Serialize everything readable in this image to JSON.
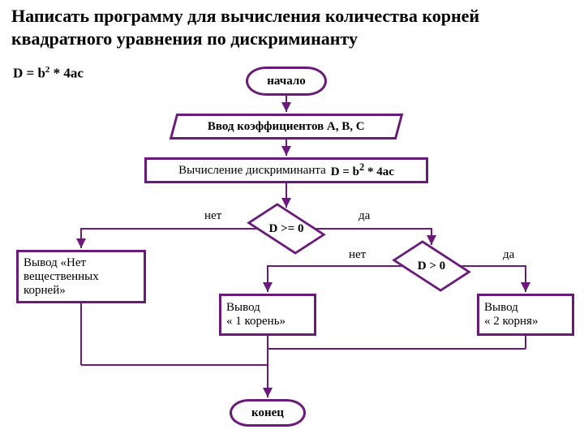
{
  "title": "Написать программу для вычисления количества корней квадратного уравнения по дискриминанту",
  "formula_html": "D = b<sup>2</sup> * 4ac",
  "nodes": {
    "start": {
      "label": "начало"
    },
    "input": {
      "label": "Ввод коэффициентов A, B, C"
    },
    "calc_text": "Вычисление дискриминанта",
    "calc_formula_html": "D = b<sup>2</sup> * 4ac",
    "dec1": {
      "label": "D >= 0",
      "no": "нет",
      "yes": "да"
    },
    "dec2": {
      "label": "D > 0",
      "no": "нет",
      "yes": "да"
    },
    "out_none": "Вывод «Нет вещественных корней»",
    "out_one": "Вывод\n« 1 корень»",
    "out_two": "Вывод\n« 2 корня»",
    "end": {
      "label": "конец"
    }
  },
  "colors": {
    "border": "#6a1b7a",
    "text": "#000000",
    "line": "#6a1b7a",
    "bg": "#ffffff"
  },
  "layout": {
    "font_family": "Times New Roman",
    "title_fontsize": 22,
    "node_fontsize": 15,
    "border_width": 3
  }
}
